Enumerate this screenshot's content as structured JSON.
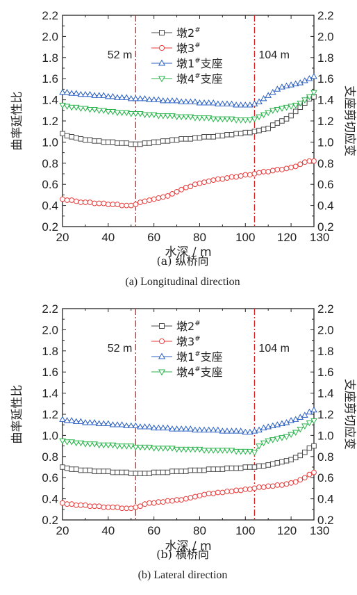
{
  "chart_data": [
    {
      "type": "line",
      "panel": "a",
      "caption_cn": "(a) 纵桥向",
      "caption_en": "(a) Longitudinal direction",
      "xlabel": "水深 / m",
      "ylabel": "曲率延性比",
      "y2label": "支座剪切应变",
      "xlim": [
        20,
        130
      ],
      "ylim": [
        0.2,
        2.2
      ],
      "y2lim": [
        0.2,
        2.2
      ],
      "xticks": [
        "20",
        "40",
        "60",
        "80",
        "100",
        "120",
        "130"
      ],
      "yticks": [
        "0.2",
        "0.4",
        "0.6",
        "0.8",
        "1.0",
        "1.2",
        "1.4",
        "1.6",
        "1.8",
        "2.0",
        "2.2"
      ],
      "annotations": [
        {
          "x": 52,
          "text": "52 m"
        },
        {
          "x": 104,
          "text": "104 m"
        }
      ],
      "legend_position": "top-center",
      "series": [
        {
          "name": "墩2",
          "sup": "#",
          "suffix": "",
          "marker": "square",
          "color": "#4a4a4a",
          "x": [
            20,
            22,
            24,
            26,
            28,
            30,
            32,
            34,
            36,
            38,
            40,
            42,
            44,
            46,
            48,
            50,
            52,
            54,
            56,
            58,
            60,
            62,
            64,
            66,
            68,
            70,
            72,
            74,
            76,
            78,
            80,
            82,
            84,
            86,
            88,
            90,
            92,
            94,
            96,
            98,
            100,
            102,
            104,
            106,
            108,
            110,
            112,
            114,
            116,
            118,
            120,
            122,
            124,
            126,
            128,
            130
          ],
          "y": [
            1.08,
            1.06,
            1.05,
            1.04,
            1.03,
            1.02,
            1.02,
            1.01,
            1.01,
            1.0,
            1.0,
            1.0,
            0.99,
            0.99,
            0.99,
            0.98,
            0.98,
            0.98,
            0.99,
            0.99,
            1.0,
            1.0,
            1.01,
            1.01,
            1.02,
            1.02,
            1.03,
            1.03,
            1.03,
            1.04,
            1.04,
            1.05,
            1.05,
            1.05,
            1.06,
            1.06,
            1.07,
            1.07,
            1.08,
            1.08,
            1.09,
            1.09,
            1.1,
            1.11,
            1.12,
            1.13,
            1.16,
            1.18,
            1.2,
            1.22,
            1.25,
            1.29,
            1.33,
            1.37,
            1.41,
            1.43
          ]
        },
        {
          "name": "墩3",
          "sup": "#",
          "suffix": "",
          "marker": "circle",
          "color": "#e83a3a",
          "x": [
            20,
            22,
            24,
            26,
            28,
            30,
            32,
            34,
            36,
            38,
            40,
            42,
            44,
            46,
            48,
            50,
            52,
            54,
            56,
            58,
            60,
            62,
            64,
            66,
            68,
            70,
            72,
            74,
            76,
            78,
            80,
            82,
            84,
            86,
            88,
            90,
            92,
            94,
            96,
            98,
            100,
            102,
            104,
            106,
            108,
            110,
            112,
            114,
            116,
            118,
            120,
            122,
            124,
            126,
            128,
            130
          ],
          "y": [
            0.46,
            0.45,
            0.45,
            0.44,
            0.43,
            0.43,
            0.43,
            0.42,
            0.42,
            0.42,
            0.41,
            0.41,
            0.41,
            0.4,
            0.4,
            0.4,
            0.41,
            0.43,
            0.44,
            0.45,
            0.46,
            0.47,
            0.48,
            0.49,
            0.51,
            0.53,
            0.55,
            0.57,
            0.58,
            0.6,
            0.61,
            0.62,
            0.63,
            0.64,
            0.65,
            0.65,
            0.66,
            0.67,
            0.67,
            0.68,
            0.69,
            0.69,
            0.7,
            0.71,
            0.72,
            0.72,
            0.73,
            0.74,
            0.74,
            0.75,
            0.76,
            0.77,
            0.79,
            0.81,
            0.82,
            0.82
          ]
        },
        {
          "name": "墩1",
          "sup": "#",
          "suffix": "支座",
          "marker": "triangle-up",
          "color": "#2a5fc0",
          "x": [
            20,
            22,
            24,
            26,
            28,
            30,
            32,
            34,
            36,
            38,
            40,
            42,
            44,
            46,
            48,
            50,
            52,
            54,
            56,
            58,
            60,
            62,
            64,
            66,
            68,
            70,
            72,
            74,
            76,
            78,
            80,
            82,
            84,
            86,
            88,
            90,
            92,
            94,
            96,
            98,
            100,
            102,
            104,
            106,
            108,
            110,
            112,
            114,
            116,
            118,
            120,
            122,
            124,
            126,
            128,
            130
          ],
          "y": [
            1.47,
            1.47,
            1.46,
            1.46,
            1.45,
            1.45,
            1.45,
            1.44,
            1.44,
            1.44,
            1.43,
            1.43,
            1.42,
            1.42,
            1.42,
            1.41,
            1.41,
            1.41,
            1.41,
            1.4,
            1.4,
            1.4,
            1.39,
            1.39,
            1.39,
            1.39,
            1.38,
            1.38,
            1.38,
            1.38,
            1.37,
            1.37,
            1.37,
            1.37,
            1.36,
            1.36,
            1.36,
            1.36,
            1.35,
            1.35,
            1.35,
            1.35,
            1.36,
            1.38,
            1.41,
            1.44,
            1.47,
            1.5,
            1.52,
            1.53,
            1.54,
            1.55,
            1.56,
            1.58,
            1.6,
            1.62
          ]
        },
        {
          "name": "墩4",
          "sup": "#",
          "suffix": "支座",
          "marker": "triangle-down",
          "color": "#27b34a",
          "x": [
            20,
            22,
            24,
            26,
            28,
            30,
            32,
            34,
            36,
            38,
            40,
            42,
            44,
            46,
            48,
            50,
            52,
            54,
            56,
            58,
            60,
            62,
            64,
            66,
            68,
            70,
            72,
            74,
            76,
            78,
            80,
            82,
            84,
            86,
            88,
            90,
            92,
            94,
            96,
            98,
            100,
            102,
            104,
            106,
            108,
            110,
            112,
            114,
            116,
            118,
            120,
            122,
            124,
            126,
            128,
            130
          ],
          "y": [
            1.35,
            1.34,
            1.33,
            1.33,
            1.32,
            1.32,
            1.31,
            1.31,
            1.3,
            1.3,
            1.29,
            1.29,
            1.28,
            1.28,
            1.28,
            1.27,
            1.27,
            1.27,
            1.26,
            1.26,
            1.26,
            1.25,
            1.25,
            1.25,
            1.25,
            1.24,
            1.24,
            1.24,
            1.24,
            1.23,
            1.23,
            1.23,
            1.23,
            1.22,
            1.22,
            1.22,
            1.22,
            1.22,
            1.21,
            1.21,
            1.21,
            1.21,
            1.22,
            1.24,
            1.26,
            1.28,
            1.3,
            1.31,
            1.32,
            1.33,
            1.34,
            1.35,
            1.37,
            1.4,
            1.43,
            1.47
          ]
        }
      ]
    },
    {
      "type": "line",
      "panel": "b",
      "caption_cn": "(b) 横桥向",
      "caption_en": "(b) Lateral direction",
      "xlabel": "水深 / m",
      "ylabel": "曲率延性比",
      "y2label": "支座剪切应变",
      "xlim": [
        20,
        130
      ],
      "ylim": [
        0.2,
        2.2
      ],
      "y2lim": [
        0.2,
        2.2
      ],
      "xticks": [
        "20",
        "40",
        "60",
        "80",
        "100",
        "120",
        "130"
      ],
      "yticks": [
        "0.2",
        "0.4",
        "0.6",
        "0.8",
        "1.0",
        "1.2",
        "1.4",
        "1.6",
        "1.8",
        "2.0",
        "2.2"
      ],
      "annotations": [
        {
          "x": 52,
          "text": "52 m"
        },
        {
          "x": 104,
          "text": "104 m"
        }
      ],
      "legend_position": "top-center",
      "series": [
        {
          "name": "墩2",
          "sup": "#",
          "suffix": "",
          "marker": "square",
          "color": "#4a4a4a",
          "x": [
            20,
            22,
            24,
            26,
            28,
            30,
            32,
            34,
            36,
            38,
            40,
            42,
            44,
            46,
            48,
            50,
            52,
            54,
            56,
            58,
            60,
            62,
            64,
            66,
            68,
            70,
            72,
            74,
            76,
            78,
            80,
            82,
            84,
            86,
            88,
            90,
            92,
            94,
            96,
            98,
            100,
            102,
            104,
            106,
            108,
            110,
            112,
            114,
            116,
            118,
            120,
            122,
            124,
            126,
            128,
            130
          ],
          "y": [
            0.7,
            0.69,
            0.68,
            0.68,
            0.67,
            0.67,
            0.67,
            0.66,
            0.66,
            0.66,
            0.66,
            0.65,
            0.65,
            0.65,
            0.65,
            0.64,
            0.64,
            0.64,
            0.64,
            0.64,
            0.65,
            0.65,
            0.65,
            0.65,
            0.66,
            0.66,
            0.66,
            0.66,
            0.67,
            0.67,
            0.67,
            0.67,
            0.68,
            0.68,
            0.68,
            0.68,
            0.69,
            0.69,
            0.69,
            0.69,
            0.7,
            0.7,
            0.7,
            0.71,
            0.71,
            0.72,
            0.73,
            0.74,
            0.75,
            0.76,
            0.77,
            0.79,
            0.81,
            0.84,
            0.88,
            0.9
          ]
        },
        {
          "name": "墩3",
          "sup": "#",
          "suffix": "",
          "marker": "circle",
          "color": "#e83a3a",
          "x": [
            20,
            22,
            24,
            26,
            28,
            30,
            32,
            34,
            36,
            38,
            40,
            42,
            44,
            46,
            48,
            50,
            52,
            54,
            56,
            58,
            60,
            62,
            64,
            66,
            68,
            70,
            72,
            74,
            76,
            78,
            80,
            82,
            84,
            86,
            88,
            90,
            92,
            94,
            96,
            98,
            100,
            102,
            104,
            106,
            108,
            110,
            112,
            114,
            116,
            118,
            120,
            122,
            124,
            126,
            128,
            130
          ],
          "y": [
            0.36,
            0.35,
            0.35,
            0.34,
            0.34,
            0.34,
            0.33,
            0.33,
            0.33,
            0.32,
            0.32,
            0.32,
            0.32,
            0.31,
            0.31,
            0.31,
            0.32,
            0.33,
            0.35,
            0.36,
            0.36,
            0.37,
            0.37,
            0.38,
            0.38,
            0.39,
            0.39,
            0.4,
            0.41,
            0.42,
            0.43,
            0.44,
            0.45,
            0.45,
            0.46,
            0.46,
            0.47,
            0.47,
            0.48,
            0.48,
            0.49,
            0.49,
            0.5,
            0.51,
            0.51,
            0.52,
            0.52,
            0.53,
            0.53,
            0.54,
            0.55,
            0.56,
            0.58,
            0.6,
            0.63,
            0.65
          ]
        },
        {
          "name": "墩1",
          "sup": "#",
          "suffix": "支座",
          "marker": "triangle-up",
          "color": "#2a5fc0",
          "x": [
            20,
            22,
            24,
            26,
            28,
            30,
            32,
            34,
            36,
            38,
            40,
            42,
            44,
            46,
            48,
            50,
            52,
            54,
            56,
            58,
            60,
            62,
            64,
            66,
            68,
            70,
            72,
            74,
            76,
            78,
            80,
            82,
            84,
            86,
            88,
            90,
            92,
            94,
            96,
            98,
            100,
            102,
            104,
            106,
            108,
            110,
            112,
            114,
            116,
            118,
            120,
            122,
            124,
            126,
            128,
            130
          ],
          "y": [
            1.15,
            1.14,
            1.14,
            1.13,
            1.13,
            1.12,
            1.12,
            1.12,
            1.11,
            1.11,
            1.11,
            1.1,
            1.1,
            1.1,
            1.09,
            1.09,
            1.09,
            1.08,
            1.08,
            1.08,
            1.07,
            1.07,
            1.07,
            1.07,
            1.06,
            1.06,
            1.06,
            1.06,
            1.06,
            1.05,
            1.05,
            1.05,
            1.05,
            1.05,
            1.05,
            1.04,
            1.04,
            1.04,
            1.04,
            1.04,
            1.03,
            1.03,
            1.04,
            1.05,
            1.07,
            1.08,
            1.09,
            1.1,
            1.11,
            1.12,
            1.14,
            1.15,
            1.17,
            1.19,
            1.22,
            1.24
          ]
        },
        {
          "name": "墩4",
          "sup": "#",
          "suffix": "支座",
          "marker": "triangle-down",
          "color": "#27b34a",
          "x": [
            20,
            22,
            24,
            26,
            28,
            30,
            32,
            34,
            36,
            38,
            40,
            42,
            44,
            46,
            48,
            50,
            52,
            54,
            56,
            58,
            60,
            62,
            64,
            66,
            68,
            70,
            72,
            74,
            76,
            78,
            80,
            82,
            84,
            86,
            88,
            90,
            92,
            94,
            96,
            98,
            100,
            102,
            104,
            106,
            108,
            110,
            112,
            114,
            116,
            118,
            120,
            122,
            124,
            126,
            128,
            130
          ],
          "y": [
            0.95,
            0.94,
            0.94,
            0.93,
            0.93,
            0.92,
            0.92,
            0.92,
            0.91,
            0.91,
            0.91,
            0.91,
            0.9,
            0.9,
            0.9,
            0.9,
            0.89,
            0.89,
            0.89,
            0.89,
            0.88,
            0.88,
            0.88,
            0.88,
            0.88,
            0.87,
            0.87,
            0.87,
            0.87,
            0.87,
            0.87,
            0.86,
            0.86,
            0.86,
            0.86,
            0.86,
            0.86,
            0.86,
            0.85,
            0.85,
            0.85,
            0.85,
            0.84,
            0.9,
            0.93,
            0.95,
            0.96,
            0.97,
            0.98,
            0.99,
            1.01,
            1.03,
            1.06,
            1.09,
            1.12,
            1.14
          ]
        }
      ]
    }
  ]
}
